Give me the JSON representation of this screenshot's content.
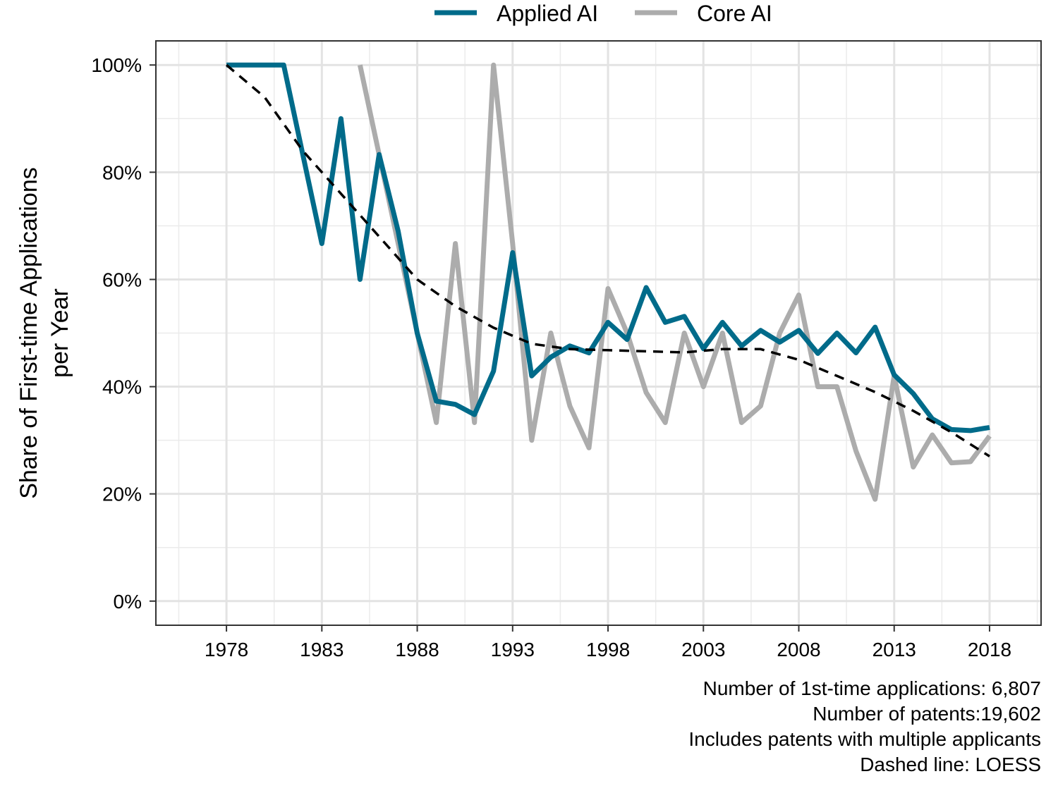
{
  "chart_data": {
    "type": "line",
    "ylabel": [
      "Share of First-time Applications",
      "per Year"
    ],
    "xlim": [
      1974.3,
      2020.7
    ],
    "ylim": [
      -0.045,
      1.045
    ],
    "x_ticks": [
      1978,
      1983,
      1988,
      1993,
      1998,
      2003,
      2008,
      2013,
      2018
    ],
    "y_ticks": [
      0,
      0.2,
      0.4,
      0.6,
      0.8,
      1.0
    ],
    "y_tick_labels": [
      "0%",
      "20%",
      "40%",
      "60%",
      "80%",
      "100%"
    ],
    "grid": true,
    "legend_position": "top",
    "series": [
      {
        "name": "Applied AI",
        "color": "#006b8a",
        "x": [
          1978,
          1979,
          1980,
          1981,
          1982,
          1983,
          1984,
          1985,
          1986,
          1987,
          1988,
          1989,
          1990,
          1991,
          1992,
          1993,
          1994,
          1995,
          1996,
          1997,
          1998,
          1999,
          2000,
          2001,
          2002,
          2003,
          2004,
          2005,
          2006,
          2007,
          2008,
          2009,
          2010,
          2011,
          2012,
          2013,
          2014,
          2015,
          2016,
          2017,
          2018
        ],
        "values": [
          1.0,
          1.0,
          1.0,
          1.0,
          0.833,
          0.667,
          0.9,
          0.6,
          0.833,
          0.69,
          0.5,
          0.373,
          0.367,
          0.348,
          0.429,
          0.65,
          0.42,
          0.455,
          0.476,
          0.463,
          0.52,
          0.488,
          0.585,
          0.52,
          0.531,
          0.471,
          0.52,
          0.476,
          0.505,
          0.483,
          0.505,
          0.462,
          0.5,
          0.463,
          0.511,
          0.422,
          0.387,
          0.34,
          0.32,
          0.318,
          0.324
        ]
      },
      {
        "name": "Core AI",
        "color": "#acacac",
        "x": [
          1985,
          1986,
          1987,
          1988,
          1989,
          1990,
          1991,
          1992,
          1993,
          1994,
          1995,
          1996,
          1997,
          1998,
          1999,
          2000,
          2001,
          2002,
          2003,
          2004,
          2005,
          2006,
          2007,
          2008,
          2009,
          2010,
          2011,
          2012,
          2013,
          2014,
          2015,
          2016,
          2017,
          2018
        ],
        "values": [
          1.0,
          0.833,
          0.667,
          0.5,
          0.333,
          0.667,
          0.333,
          1.0,
          0.667,
          0.3,
          0.5,
          0.364,
          0.286,
          0.583,
          0.5,
          0.389,
          0.333,
          0.5,
          0.4,
          0.5,
          0.333,
          0.364,
          0.5,
          0.571,
          0.4,
          0.4,
          0.28,
          0.19,
          0.42,
          0.25,
          0.31,
          0.258,
          0.26,
          0.308
        ]
      },
      {
        "name": "LOESS",
        "style": "dashed",
        "color": "#000000",
        "x": [
          1978,
          1980,
          1982,
          1984,
          1986,
          1988,
          1990,
          1992,
          1994,
          1996,
          1998,
          2000,
          2002,
          2004,
          2006,
          2008,
          2010,
          2012,
          2014,
          2016,
          2018
        ],
        "values": [
          1.0,
          0.94,
          0.84,
          0.76,
          0.68,
          0.6,
          0.55,
          0.51,
          0.48,
          0.47,
          0.468,
          0.466,
          0.464,
          0.47,
          0.47,
          0.45,
          0.42,
          0.39,
          0.355,
          0.315,
          0.27
        ]
      }
    ],
    "caption": [
      "Number of 1st-time applications: 6,807",
      "Number of patents:19,602",
      "Includes patents with multiple applicants",
      "Dashed line: LOESS"
    ]
  }
}
